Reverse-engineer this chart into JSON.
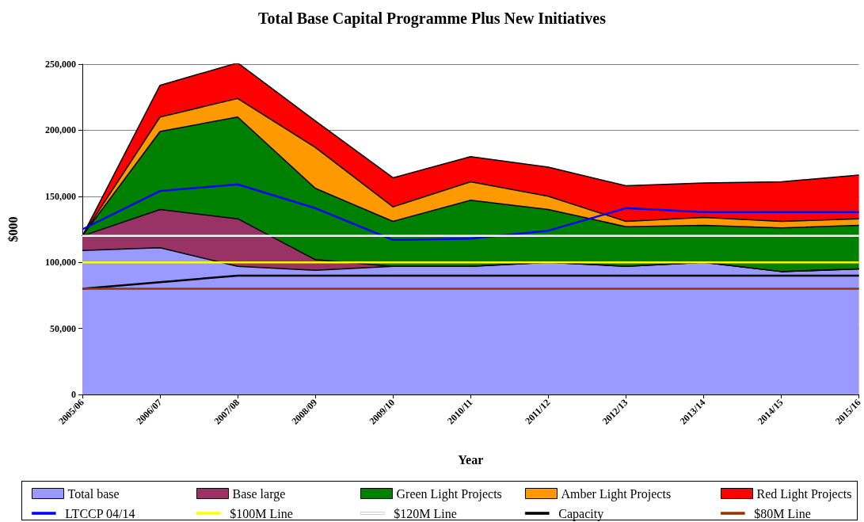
{
  "chart_data": {
    "type": "area",
    "title": "Total Base Capital Programme Plus New Initiatives",
    "xlabel": "Year",
    "ylabel": "$000",
    "categories": [
      "2005/06",
      "2006/07",
      "2007/08",
      "2008/09",
      "2009/10",
      "2010/11",
      "2011/12",
      "2012/13",
      "2013/14",
      "2014/15",
      "2015/16"
    ],
    "stacked": true,
    "series": [
      {
        "name": "Total base",
        "color": "#9999ff",
        "values": [
          109000,
          111000,
          97000,
          94000,
          97000,
          97000,
          100000,
          97000,
          100000,
          93000,
          95000
        ]
      },
      {
        "name": "Base large",
        "color": "#993366",
        "values": [
          11000,
          29000,
          36000,
          8000,
          0,
          0,
          0,
          0,
          0,
          0,
          0
        ]
      },
      {
        "name": "Green Light Projects",
        "color": "#008000",
        "values": [
          0,
          59000,
          77000,
          54000,
          34000,
          50000,
          40000,
          30000,
          28000,
          33000,
          33000
        ]
      },
      {
        "name": "Amber Light Projects",
        "color": "#ff9900",
        "values": [
          0,
          11000,
          14000,
          31000,
          11000,
          14000,
          10000,
          4000,
          6000,
          5000,
          5000
        ]
      },
      {
        "name": "Red Light Projects",
        "color": "#ff0000",
        "values": [
          0,
          24000,
          27000,
          20000,
          22000,
          19000,
          22000,
          27000,
          26000,
          30000,
          33000
        ]
      },
      {
        "name": "LTCCP 04/14",
        "type": "line",
        "color": "#0000ff",
        "values": [
          125000,
          154000,
          159000,
          141000,
          117000,
          118000,
          124000,
          141000,
          138000,
          138000,
          138000
        ]
      },
      {
        "name": "$100M Line",
        "type": "line",
        "color": "#ffff00",
        "values": [
          100000,
          100000,
          100000,
          100000,
          100000,
          100000,
          100000,
          100000,
          100000,
          100000,
          100000
        ]
      },
      {
        "name": "$120M Line",
        "type": "line",
        "color": "#ffffff",
        "values": [
          120000,
          120000,
          120000,
          120000,
          120000,
          120000,
          120000,
          120000,
          120000,
          120000,
          120000
        ]
      },
      {
        "name": "Capacity",
        "type": "line",
        "color": "#000000",
        "values": [
          80000,
          85000,
          90000,
          90000,
          90000,
          90000,
          90000,
          90000,
          90000,
          90000,
          90000
        ]
      },
      {
        "name": "$80M Line",
        "type": "line",
        "color": "#993300",
        "values": [
          80000,
          80000,
          80000,
          80000,
          80000,
          80000,
          80000,
          80000,
          80000,
          80000,
          80000
        ]
      }
    ],
    "ylim": [
      0,
      250000
    ],
    "yticks": [
      {
        "value": 0,
        "label": "0"
      },
      {
        "value": 50000,
        "label": "50,000"
      },
      {
        "value": 100000,
        "label": "100,000"
      },
      {
        "value": 150000,
        "label": "150,000"
      },
      {
        "value": 200000,
        "label": "200,000"
      },
      {
        "value": 250000,
        "label": "250,000"
      }
    ],
    "grid": "y",
    "legend": "bottom",
    "marker": "none",
    "line_style": "solid"
  }
}
